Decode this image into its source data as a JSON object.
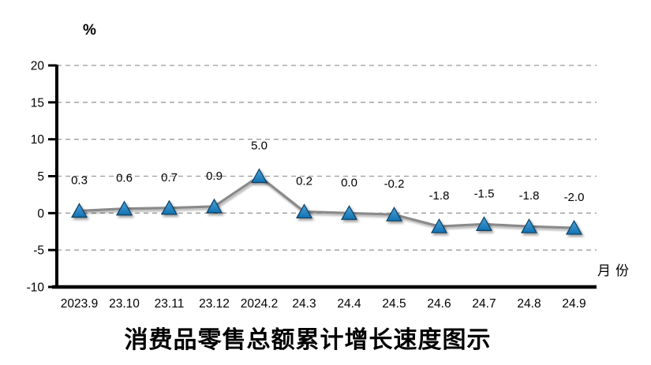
{
  "chart_data": {
    "type": "line",
    "title": "消费品零售总额累计增长速度图示",
    "ylabel": "%",
    "xlabel": "月份",
    "categories": [
      "2023.9",
      "23.10",
      "23.11",
      "23.12",
      "2024.2",
      "24.3",
      "24.4",
      "24.5",
      "24.6",
      "24.7",
      "24.8",
      "24.9"
    ],
    "values": [
      0.3,
      0.6,
      0.7,
      0.9,
      5.0,
      0.2,
      0.0,
      -0.2,
      -1.8,
      -1.5,
      -1.8,
      -2.0
    ],
    "data_labels": [
      "0.3",
      "0.6",
      "0.7",
      "0.9",
      "5.0",
      "0.2",
      "0.0",
      "-0.2",
      "-1.8",
      "-1.5",
      "-1.8",
      "-2.0"
    ],
    "yticks": [
      20,
      15,
      10,
      5,
      0,
      -5,
      -10
    ],
    "ylim": [
      -10,
      20
    ],
    "grid": "dashed-horizontal",
    "legend": "none",
    "colors": {
      "marker_fill_top": "#4ba2d8",
      "marker_fill_bottom": "#1272b2",
      "marker_stroke": "#0e3f63",
      "line": "#8a8a8a",
      "grid": "#9b9b9b",
      "axis": "#000000",
      "text": "#000000",
      "background": "#ffffff"
    }
  }
}
